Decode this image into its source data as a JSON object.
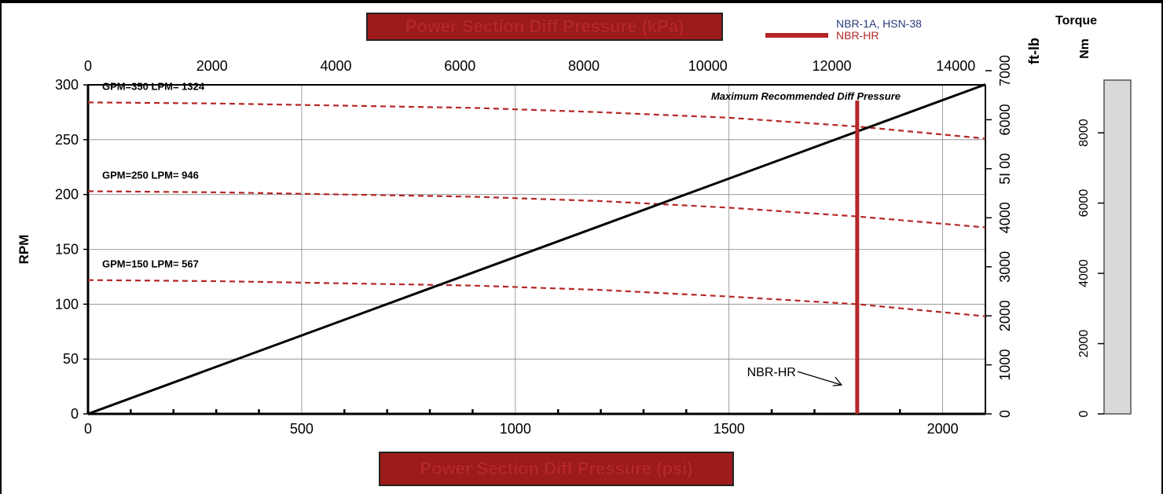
{
  "chart_data": {
    "type": "line",
    "title_top": "Power Section Diff Pressure (kPa)",
    "title_bottom": "Power Section Diff Pressure (psi)",
    "ylabel": "RPM",
    "x_psi": {
      "lim": [
        0,
        2100
      ],
      "ticks": [
        0,
        500,
        1000,
        1500,
        2000
      ]
    },
    "x_kpa": {
      "lim": [
        0,
        14479
      ],
      "ticks": [
        0,
        2000,
        4000,
        6000,
        8000,
        10000,
        12000,
        14000
      ]
    },
    "y_rpm": {
      "lim": [
        0,
        300
      ],
      "ticks": [
        0,
        50,
        100,
        150,
        200,
        250,
        300
      ]
    },
    "torque_ftlb": {
      "label": "ft-lb",
      "lim": [
        0,
        7000
      ],
      "ticks": [
        0,
        1000,
        2000,
        3000,
        4000,
        5000,
        6000,
        7000
      ],
      "tick_labels": [
        "0",
        "1000",
        "2000",
        "3000",
        "4000",
        "5I 00",
        "6000",
        "7000"
      ]
    },
    "torque_nm": {
      "label": "Nm",
      "lim": [
        0,
        9500
      ],
      "ticks": [
        0,
        2000,
        4000,
        6000,
        8000
      ]
    },
    "torque_header": "Torque",
    "grid": true,
    "legend": {
      "items": [
        {
          "label": "NBR-1A, HSN-38",
          "color": "#2b3a7a"
        },
        {
          "label": "NBR-HR",
          "color": "#b52727"
        }
      ]
    },
    "series": [
      {
        "name": "GPM=350 LPM= 1324",
        "style": "dashed",
        "color": "#b52727",
        "x": [
          0,
          300,
          600,
          900,
          1200,
          1500,
          1800,
          2100
        ],
        "y": [
          284,
          283,
          281,
          279,
          275,
          270,
          262,
          251
        ]
      },
      {
        "name": "GPM=250 LPM= 946",
        "style": "dashed",
        "color": "#b52727",
        "x": [
          0,
          300,
          600,
          900,
          1200,
          1500,
          1800,
          2100
        ],
        "y": [
          203,
          202,
          200,
          198,
          194,
          188,
          180,
          170
        ]
      },
      {
        "name": "GPM=150 LPM= 567",
        "style": "dashed",
        "color": "#b52727",
        "x": [
          0,
          300,
          600,
          900,
          1200,
          1500,
          1800,
          2100
        ],
        "y": [
          122,
          121,
          119,
          117,
          113,
          107,
          100,
          89
        ]
      },
      {
        "name": "",
        "style": "solid",
        "color": "#000000",
        "axis": "torque_ftlb",
        "x": [
          0,
          2100
        ],
        "y": [
          0,
          6720
        ]
      }
    ],
    "max_pressure": {
      "x": 1800,
      "label": "Maximum Recommended Diff Pressure",
      "color": "#b52727"
    },
    "annotations": [
      {
        "text": "NBR-HR",
        "x": 1800,
        "y": 30
      }
    ]
  }
}
